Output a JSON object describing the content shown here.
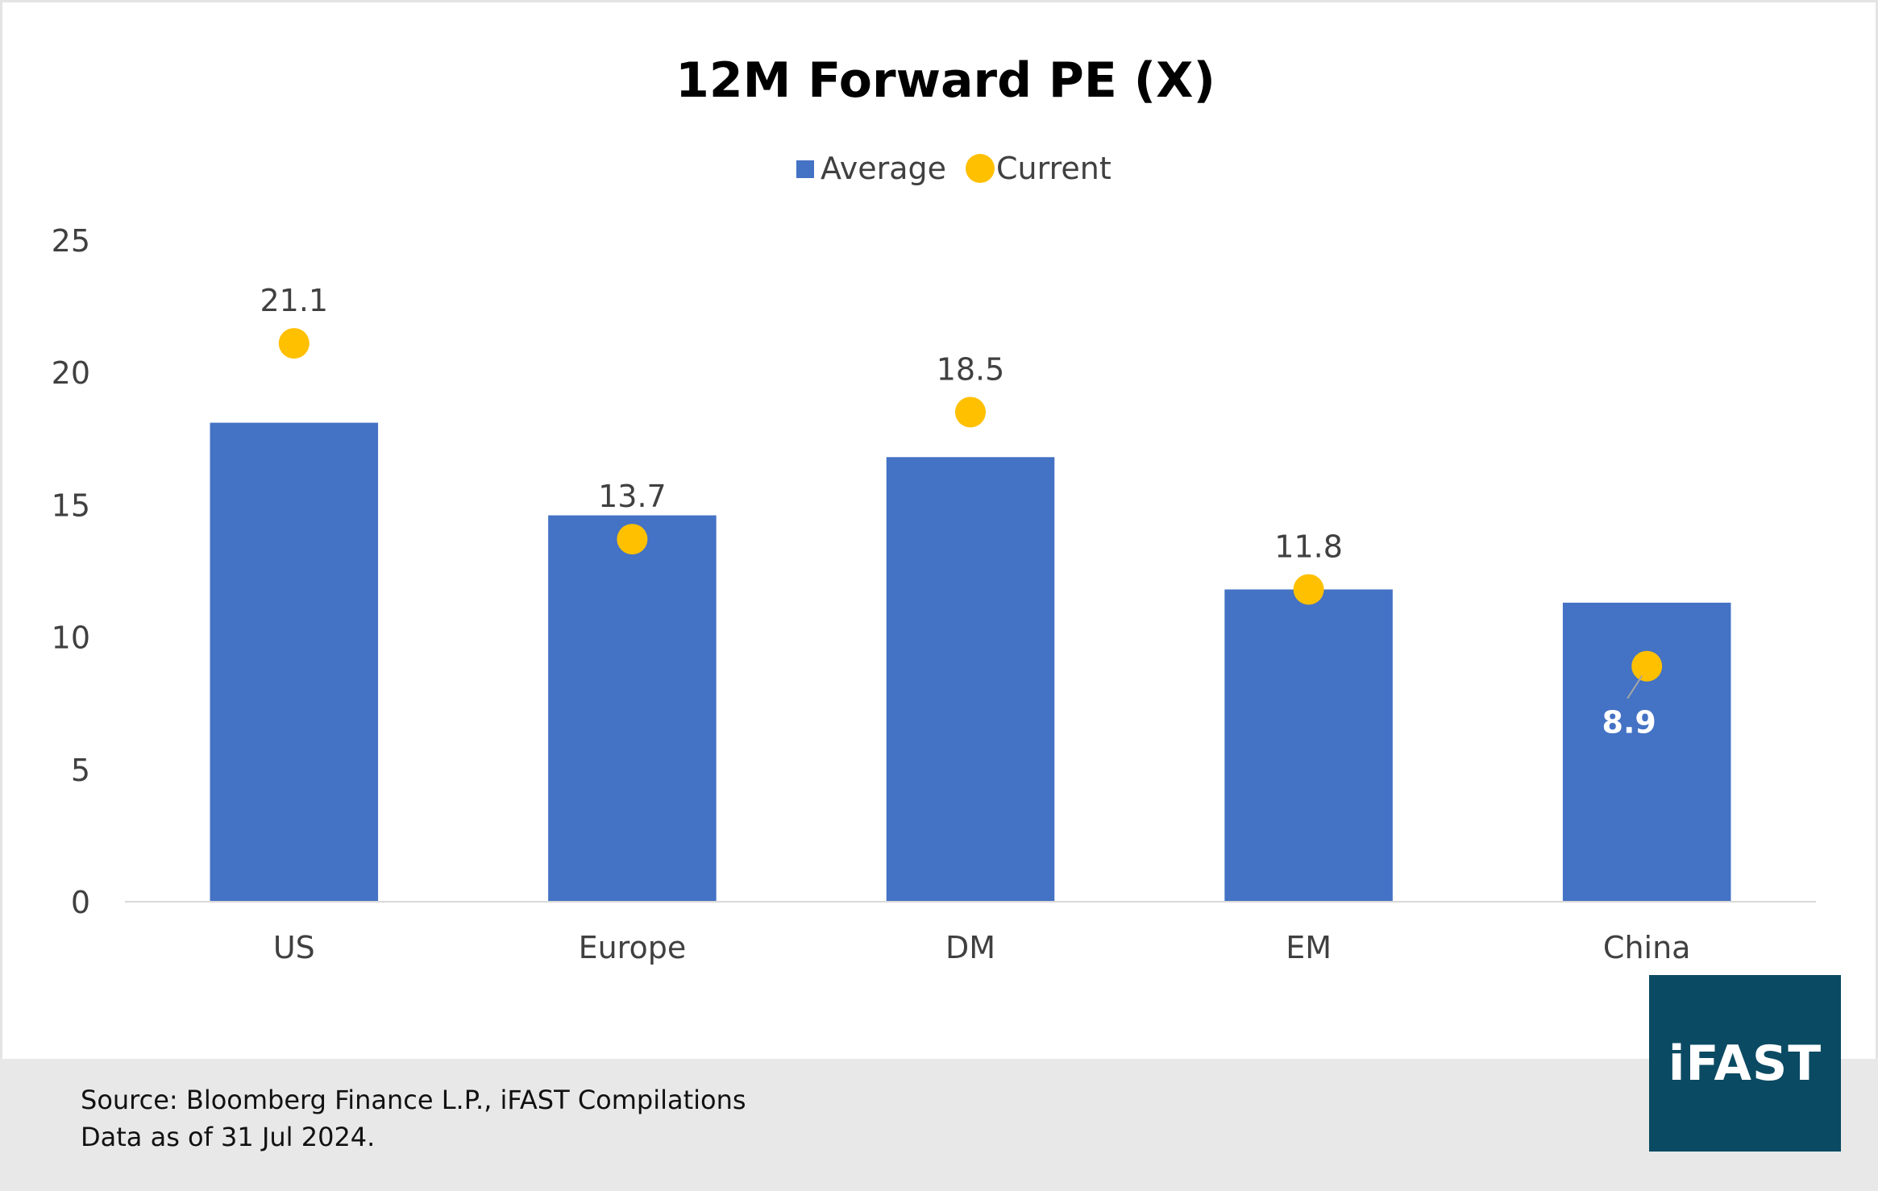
{
  "chart_data": {
    "type": "bar",
    "title": "12M Forward PE (X)",
    "categories": [
      "US",
      "Europe",
      "DM",
      "EM",
      "China"
    ],
    "series": [
      {
        "name": "Average",
        "kind": "bar",
        "values": [
          18.1,
          14.6,
          16.8,
          11.8,
          11.3
        ]
      },
      {
        "name": "Current",
        "kind": "point",
        "values": [
          21.1,
          13.7,
          18.5,
          11.8,
          8.9
        ]
      }
    ],
    "data_labels": [
      "21.1",
      "13.7",
      "18.5",
      "11.8",
      "8.9"
    ],
    "xlabel": "",
    "ylabel": "",
    "ylim": [
      0,
      25
    ],
    "yticks": [
      0,
      5,
      10,
      15,
      20,
      25
    ],
    "grid": false,
    "legend_position": "top-center",
    "colors": {
      "bar": "#4472c4",
      "point": "#ffc000",
      "label": "#404040",
      "inside_label": "#ffffff"
    }
  },
  "source_note": "Source: Bloomberg Finance L.P., iFAST Compilations",
  "date_note": "Data as of 31 Jul 2024.",
  "logo": {
    "text": "iFAST",
    "background": "#0b4a63"
  }
}
